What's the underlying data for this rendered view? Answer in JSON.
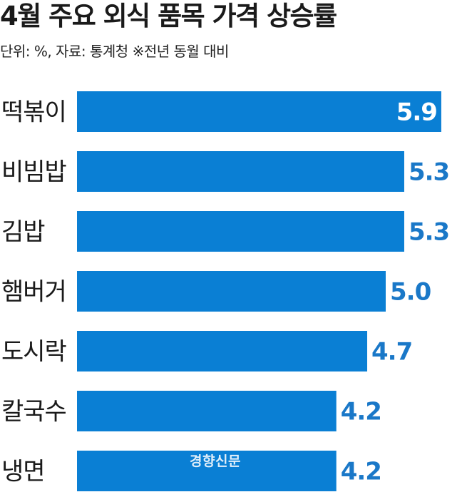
{
  "title": "4월 주요 외식 품목 가격 상승률",
  "subtitle": "단위: %, 자료: 통계청 ※전년 동월 대비",
  "watermark": "경향신문",
  "colors": {
    "bar": "#0a7fd4",
    "value_text_outside": "#1a78c8",
    "value_text_inside": "#ffffff"
  },
  "chart_data": {
    "type": "bar",
    "orientation": "horizontal",
    "title": "4월 주요 외식 품목 가격 상승률",
    "categories": [
      "떡볶이",
      "비빔밥",
      "김밥",
      "햄버거",
      "도시락",
      "칼국수",
      "냉면"
    ],
    "values": [
      5.9,
      5.3,
      5.3,
      5.0,
      4.7,
      4.2,
      4.2
    ],
    "value_labels": [
      "5.9",
      "5.3",
      "5.3",
      "5.0",
      "4.7",
      "4.2",
      "4.2"
    ],
    "unit": "%",
    "xlabel": "",
    "ylabel": "",
    "grid": false,
    "legend": "none"
  }
}
